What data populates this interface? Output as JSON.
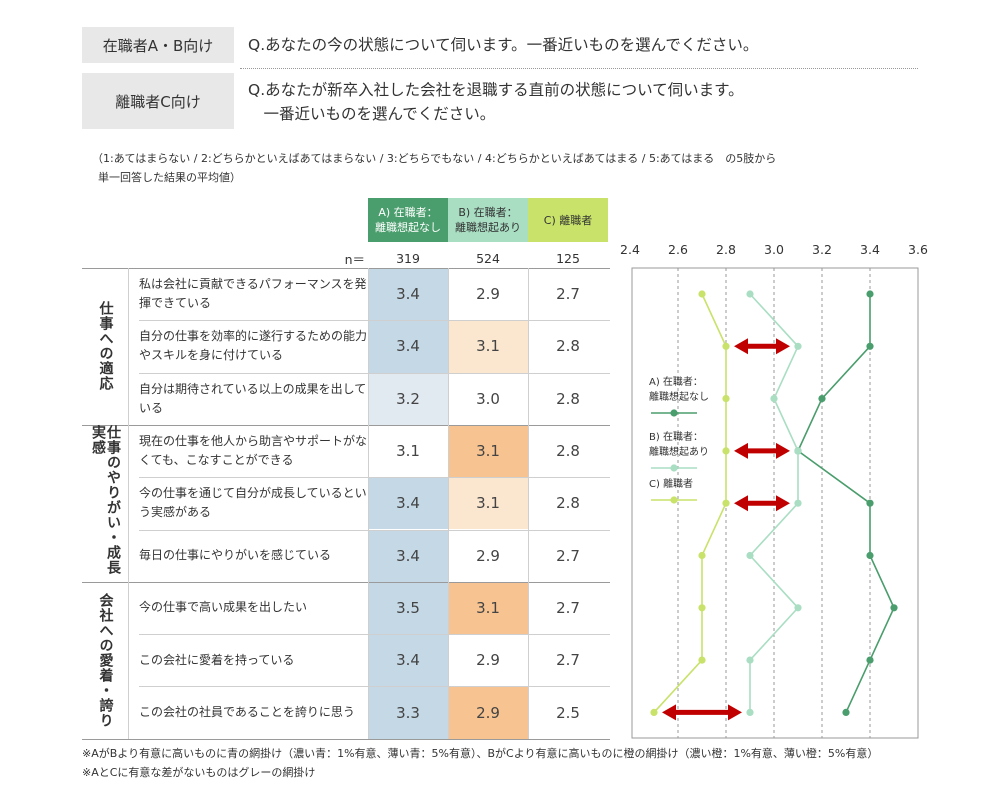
{
  "questions": [
    {
      "tag": "在職者A・B向け",
      "text": "Q.あなたの今の状態について伺います。一番近いものを選んでください。"
    },
    {
      "tag": "離職者C向け",
      "text": "Q.あなたが新卒入社した会社を退職する直前の状態について伺います。\n　一番近いものを選んでください。"
    }
  ],
  "note_line1": "（1:あてはまらない / 2:どちらかといえばあてはまらない / 3:どちらでもない / 4:どちらかといえばあてはまる / 5:あてはまる　の5肢から",
  "note_line2": "単一回答した結果の平均値）",
  "columns": [
    {
      "label": "A) 在職者：\n離職想起なし",
      "n": "319",
      "color": "#4a9d6c"
    },
    {
      "label": "B) 在職者：\n離職想起あり",
      "n": "524",
      "color": "#a9dec3"
    },
    {
      "label": "C) 離職者",
      "n": "125",
      "color": "#c8e26a"
    }
  ],
  "n_label": "n＝",
  "categories": [
    {
      "label": "仕事への適応",
      "rows": [
        0,
        1,
        2
      ]
    },
    {
      "label": "仕事のやりがい・成長実感",
      "rows": [
        3,
        4,
        5
      ]
    },
    {
      "label": "会社への愛着・誇り",
      "rows": [
        6,
        7,
        8
      ]
    }
  ],
  "rows": [
    {
      "item": "私は会社に貢献できるパフォーマンスを発揮できている",
      "a": "3.4",
      "b": "2.9",
      "c": "2.7",
      "a_shade": "dark_blue",
      "b_shade": "none"
    },
    {
      "item": "自分の仕事を効率的に遂行するための能力やスキルを身に付けている",
      "a": "3.4",
      "b": "3.1",
      "c": "2.8",
      "a_shade": "dark_blue",
      "b_shade": "light_orange"
    },
    {
      "item": "自分は期待されている以上の成果を出している",
      "a": "3.2",
      "b": "3.0",
      "c": "2.8",
      "a_shade": "light_blue",
      "b_shade": "none"
    },
    {
      "item": "現在の仕事を他人から助言やサポートがなくても、こなすことができる",
      "a": "3.1",
      "b": "3.1",
      "c": "2.8",
      "a_shade": "none",
      "b_shade": "dark_orange"
    },
    {
      "item": "今の仕事を通じて自分が成長しているという実感がある",
      "a": "3.4",
      "b": "3.1",
      "c": "2.8",
      "a_shade": "dark_blue",
      "b_shade": "light_orange"
    },
    {
      "item": "毎日の仕事にやりがいを感じている",
      "a": "3.4",
      "b": "2.9",
      "c": "2.7",
      "a_shade": "dark_blue",
      "b_shade": "none"
    },
    {
      "item": "今の仕事で高い成果を出したい",
      "a": "3.5",
      "b": "3.1",
      "c": "2.7",
      "a_shade": "dark_blue",
      "b_shade": "dark_orange"
    },
    {
      "item": "この会社に愛着を持っている",
      "a": "3.4",
      "b": "2.9",
      "c": "2.7",
      "a_shade": "dark_blue",
      "b_shade": "none"
    },
    {
      "item": "この会社の社員であることを誇りに思う",
      "a": "3.3",
      "b": "2.9",
      "c": "2.5",
      "a_shade": "dark_blue",
      "b_shade": "dark_orange"
    }
  ],
  "shade_colors": {
    "dark_blue": "#c5d8e6",
    "light_blue": "#e1e9f1",
    "dark_orange": "#f7c491",
    "light_orange": "#fbe6cf",
    "none": "#ffffff"
  },
  "chart_data": {
    "type": "line",
    "orientation": "horizontal-values",
    "x_ticks": [
      "2.4",
      "2.6",
      "2.8",
      "3.0",
      "3.2",
      "3.4",
      "3.6"
    ],
    "xlim": [
      2.4,
      3.6
    ],
    "series": [
      {
        "name": "A) 在職者：\n離職想起なし",
        "color": "#4a9d6c",
        "values": [
          3.4,
          3.4,
          3.2,
          3.1,
          3.4,
          3.4,
          3.5,
          3.4,
          3.3
        ]
      },
      {
        "name": "B) 在職者：\n離職想起あり",
        "color": "#a9dec3",
        "values": [
          2.9,
          3.1,
          3.0,
          3.1,
          3.1,
          2.9,
          3.1,
          2.9,
          2.9
        ]
      },
      {
        "name": "C) 離職者",
        "color": "#c8e26a",
        "values": [
          2.7,
          2.8,
          2.8,
          2.8,
          2.8,
          2.7,
          2.7,
          2.7,
          2.5
        ]
      }
    ],
    "gaps": [
      {
        "row": 1,
        "from": 2.8,
        "to": 3.1
      },
      {
        "row": 3,
        "from": 2.8,
        "to": 3.1
      },
      {
        "row": 4,
        "from": 2.8,
        "to": 3.1
      },
      {
        "row": 8,
        "from": 2.5,
        "to": 2.9
      }
    ],
    "gap_color": "#c00000",
    "grid": "dashed-vertical",
    "legend": "left-inside"
  },
  "footnotes": [
    "※AがBより有意に高いものに青の網掛け（濃い青：1%有意、薄い青：5%有意）、BがCより有意に高いものに橙の網掛け（濃い橙：1%有意、薄い橙：5%有意）",
    "※AとCに有意な差がないものはグレーの網掛け"
  ]
}
